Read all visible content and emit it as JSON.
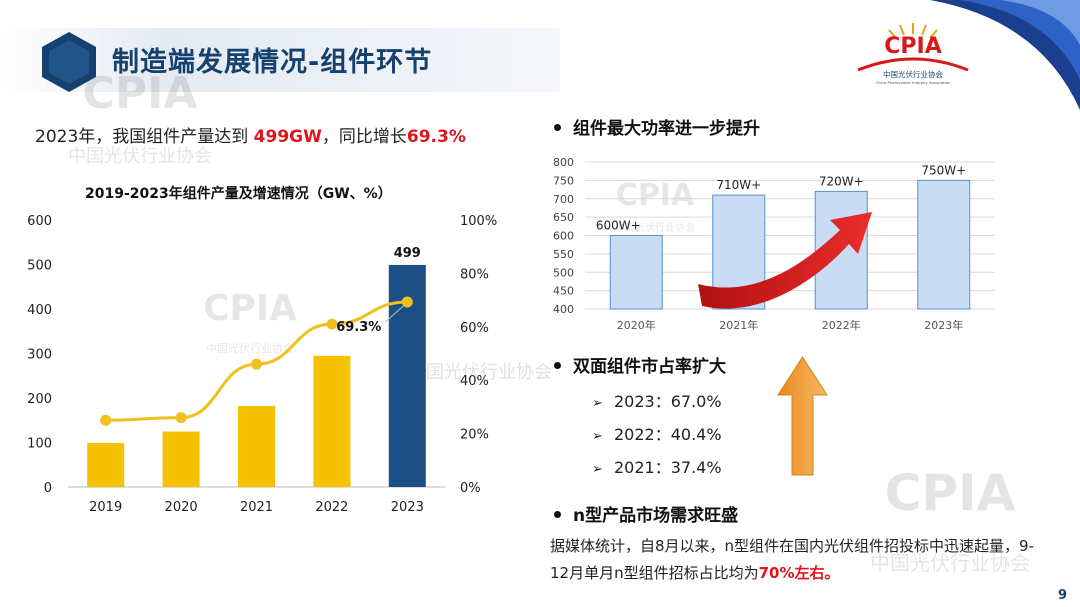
{
  "header": {
    "title": "制造端发展情况-组件环节"
  },
  "logo": {
    "mark": "CPIA",
    "org_name": "中国光伏行业协会",
    "org_name_en": "China Photovoltaic Industry Association"
  },
  "lead": {
    "prefix": "2023年，我国组件产量达到 ",
    "output": "499GW",
    "middle": "，同比增长",
    "growth": "69.3%"
  },
  "colors": {
    "brand_blue": "#16416e",
    "bar_yellow": "#f6c100",
    "bar_blue": "#1c4f86",
    "line_yellow": "#f0c01e",
    "highlight_red": "#e0141e",
    "bar_light_blue": "#c9dcf3",
    "arrow_red": "#d31f22",
    "arrow_orange": "#f0a236"
  },
  "chart_data": [
    {
      "type": "bar",
      "title": "2019-2023年组件产量及增速情况（GW、%）",
      "categories": [
        "2019",
        "2020",
        "2021",
        "2022",
        "2023"
      ],
      "series": [
        {
          "values": [
            98.6,
            124.6,
            182,
            294.7,
            499
          ],
          "axis": "left"
        },
        {
          "type": "line",
          "values": [
            25,
            26,
            46,
            61,
            69.3
          ],
          "axis": "right"
        }
      ],
      "ylim": [
        0,
        600
      ],
      "y_ticks": [
        "0",
        "100",
        "200",
        "300",
        "400",
        "500",
        "600"
      ],
      "y2lim": [
        0,
        100
      ],
      "y2_ticks": [
        "0%",
        "20%",
        "40%",
        "60%",
        "80%",
        "100%"
      ],
      "data_labels": {
        "bar_2023": "499",
        "line_2023": "69.3%"
      },
      "grid": false
    },
    {
      "type": "bar",
      "categories": [
        "2020年",
        "2021年",
        "2022年",
        "2023年"
      ],
      "values": [
        600,
        710,
        720,
        750
      ],
      "data_labels": [
        "600W+",
        "710W+",
        "720W+",
        "750W+"
      ],
      "ylim": [
        400,
        800
      ],
      "y_ticks": [
        "400",
        "450",
        "500",
        "550",
        "600",
        "650",
        "700",
        "750",
        "800"
      ],
      "grid": true
    }
  ],
  "bullets": [
    {
      "text": "组件最大功率进一步提升"
    },
    {
      "text": "双面组件市占率扩大",
      "items": [
        "2023：67.0%",
        "2022：40.4%",
        "2021：37.4%"
      ]
    },
    {
      "text": "n型产品市场需求旺盛",
      "para_before": "据媒体统计，自8月以来，n型组件在国内光伏组件招投标中迅速起量，9-12月单月n型组件招标占比均为",
      "para_red": "70%左右。"
    }
  ],
  "page_number": "9"
}
